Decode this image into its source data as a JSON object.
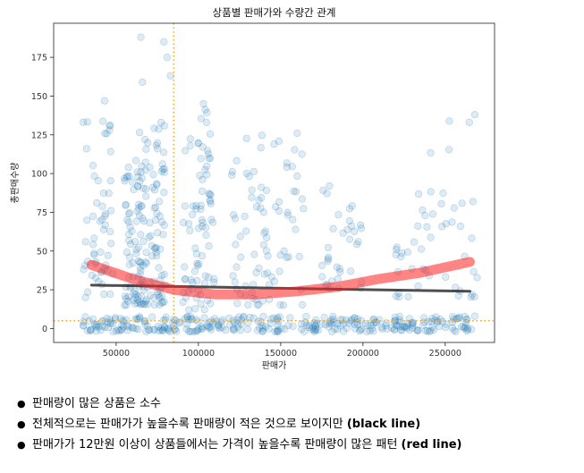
{
  "chart_data": {
    "type": "scatter",
    "title": "상품별 판매가와 수량간 관계",
    "xlabel": "판매가",
    "ylabel": "총판매수량",
    "xlim": [
      12000,
      280000
    ],
    "ylim": [
      -9,
      197
    ],
    "xticks": [
      50000,
      100000,
      150000,
      200000,
      250000
    ],
    "xtick_labels": [
      "50000",
      "100000",
      "150000",
      "200000",
      "250000"
    ],
    "yticks": [
      0,
      25,
      50,
      75,
      100,
      125,
      150,
      175
    ],
    "ytick_labels": [
      "0",
      "25",
      "50",
      "75",
      "100",
      "125",
      "150",
      "175"
    ],
    "grid": false,
    "point_color": "#1f77b4",
    "point_alpha": 0.15,
    "point_groups": [
      {
        "x_range": [
          30000,
          48000
        ],
        "y_range": [
          20,
          147
        ],
        "n": 55
      },
      {
        "x_range": [
          55000,
          68000
        ],
        "y_range": [
          15,
          108
        ],
        "n": 75
      },
      {
        "x_range": [
          62000,
          80000
        ],
        "y_range": [
          15,
          135
        ],
        "n": 90
      },
      {
        "x_range": [
          90000,
          110000
        ],
        "y_range": [
          5,
          145
        ],
        "n": 85
      },
      {
        "x_range": [
          120000,
          140000
        ],
        "y_range": [
          15,
          125
        ],
        "n": 45
      },
      {
        "x_range": [
          140000,
          165000
        ],
        "y_range": [
          15,
          125
        ],
        "n": 40
      },
      {
        "x_range": [
          175000,
          200000
        ],
        "y_range": [
          25,
          95
        ],
        "n": 35
      },
      {
        "x_range": [
          220000,
          240000
        ],
        "y_range": [
          20,
          90
        ],
        "n": 22
      },
      {
        "x_range": [
          240000,
          270000
        ],
        "y_range": [
          20,
          140
        ],
        "n": 28
      },
      {
        "x_range": [
          30000,
          268000
        ],
        "y_range": [
          -2,
          8
        ],
        "n": 320
      }
    ],
    "outlier_points": [
      {
        "x": 65000,
        "y": 188
      },
      {
        "x": 79000,
        "y": 185
      },
      {
        "x": 81000,
        "y": 175
      },
      {
        "x": 66000,
        "y": 159
      },
      {
        "x": 83000,
        "y": 163
      },
      {
        "x": 103000,
        "y": 145
      },
      {
        "x": 160000,
        "y": 126
      },
      {
        "x": 268000,
        "y": 138
      },
      {
        "x": 43000,
        "y": 147
      }
    ],
    "reference_lines": [
      {
        "orientation": "vertical",
        "value": 85000,
        "color": "#f5a623",
        "style": "dotted"
      },
      {
        "orientation": "horizontal",
        "value": 5,
        "color": "#f5a623",
        "style": "dotted"
      }
    ],
    "fit_lines": [
      {
        "name": "black line",
        "color": "#222222",
        "alpha": 0.8,
        "kind": "linear",
        "x": [
          35000,
          265000
        ],
        "y": [
          28,
          24
        ]
      },
      {
        "name": "red line",
        "color": "#ff2020",
        "alpha": 0.55,
        "kind": "quadratic",
        "x": [
          35000,
          60000,
          85000,
          110000,
          135000,
          160000,
          185000,
          210000,
          235000,
          265000
        ],
        "y": [
          41,
          32,
          25,
          22,
          22,
          24,
          27,
          32,
          36,
          43
        ]
      }
    ]
  },
  "notes": [
    {
      "text": "판매량이 많은 상품은 소수",
      "bold": ""
    },
    {
      "text": "전체적으로는 판매가가 높을수록 판매량이 적은 것으로 보이지만 ",
      "bold": "(black line)"
    },
    {
      "text": "판매가가 12만원 이상이 상품들에서는 가격이 높을수록 판매량이 많은 패턴 ",
      "bold": "(red line)"
    }
  ],
  "bullet_char": "●"
}
